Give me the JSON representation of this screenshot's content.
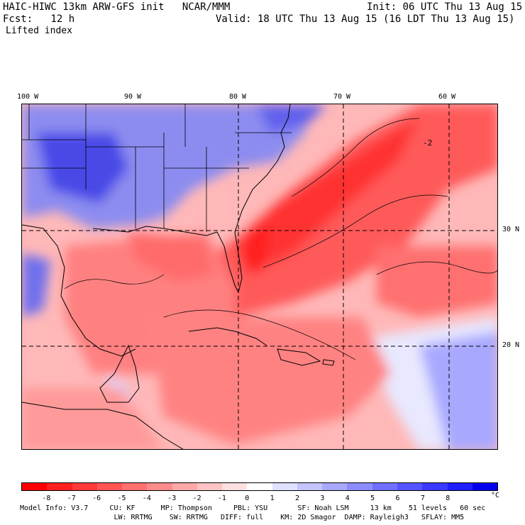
{
  "header": {
    "title": "HAIC-HIWC 13km ARW-GFS init   NCAR/MMM",
    "init": "Init: 06 UTC Thu 13 Aug 15",
    "fcst": "Fcst:   12 h",
    "valid": "Valid: 18 UTC Thu 13 Aug 15 (16 LDT Thu 13 Aug 15)",
    "field": "Lifted index"
  },
  "map": {
    "lon_labels": [
      "100 W",
      "90 W",
      "80 W",
      "70 W",
      "60 W"
    ],
    "lat_labels": [
      "30 N",
      "20 N"
    ],
    "contour_label": "-2"
  },
  "colorbar": {
    "ticks": [
      "-8",
      "-7",
      "-6",
      "-5",
      "-4",
      "-3",
      "-2",
      "-1",
      "0",
      "1",
      "2",
      "3",
      "4",
      "5",
      "6",
      "7",
      "8"
    ],
    "unit": "°C",
    "colors": [
      "#ff0000",
      "#ff1f1f",
      "#ff3a3a",
      "#ff5555",
      "#ff7070",
      "#ff8c8c",
      "#ffa8a8",
      "#ffc4c4",
      "#ffe0e0",
      "#ffffff",
      "#e0e0ff",
      "#c4c4ff",
      "#a8a8ff",
      "#8c8cff",
      "#7070ff",
      "#5555ff",
      "#3a3aff",
      "#1f1fff",
      "#0000ee"
    ]
  },
  "model_info": {
    "line1": "Model Info: V3.7     CU: KF      MP: Thompson     PBL: YSU       SF: Noah LSM     13 km    51 levels   60 sec",
    "line2": "                      LW: RRTMG    SW: RRTMG   DIFF: full    KM: 2D Smagor  DAMP: Rayleigh3   SFLAY: MM5"
  }
}
